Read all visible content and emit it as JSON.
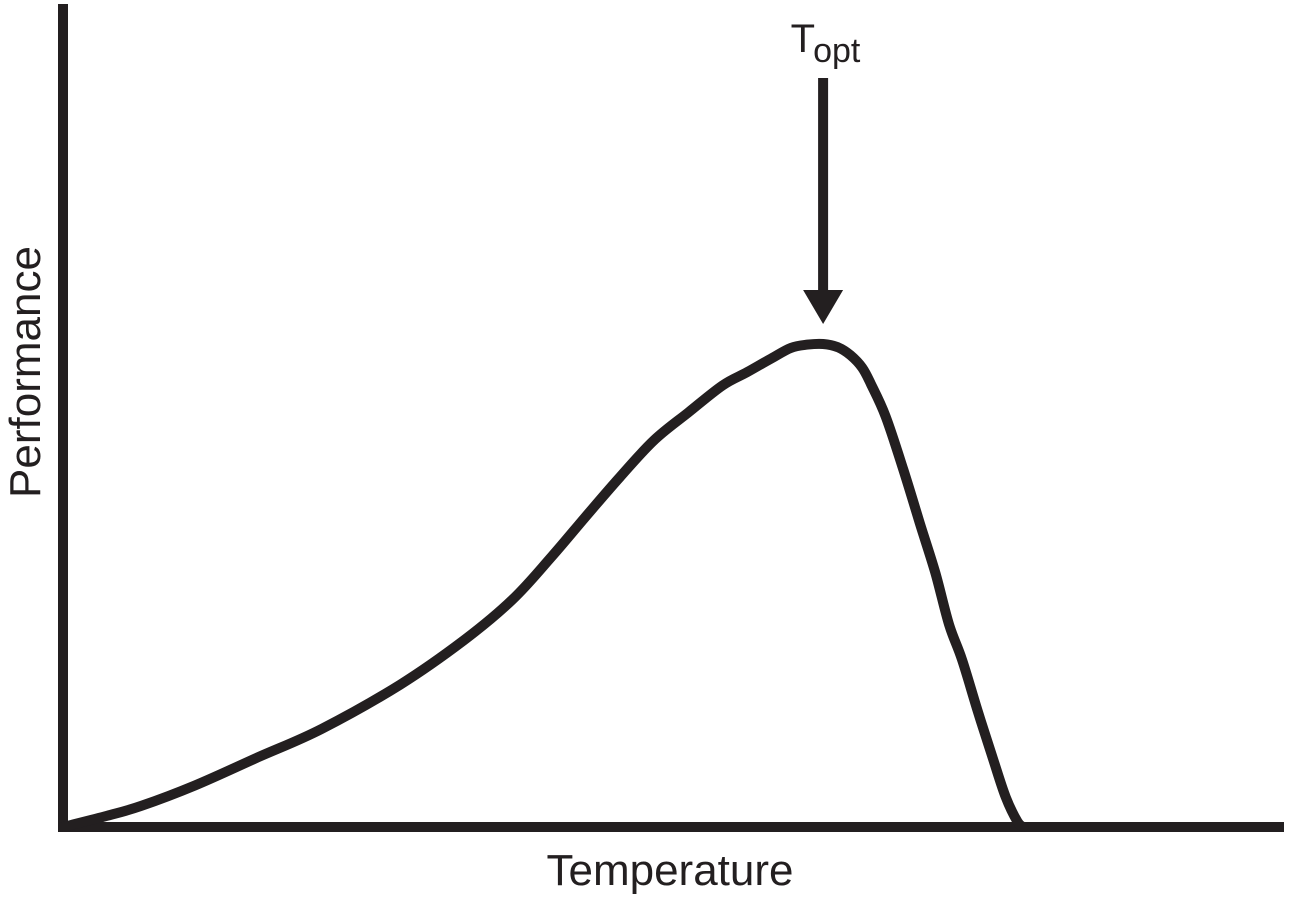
{
  "chart_data": {
    "type": "line",
    "title": "",
    "xlabel": "Temperature",
    "ylabel": "Performance",
    "grid": false,
    "legend": "none",
    "xlim": [
      0,
      1
    ],
    "ylim": [
      0,
      1
    ],
    "series": [
      {
        "color": "#231f20",
        "points": [
          [
            0.0,
            0.0
          ],
          [
            0.045,
            0.017
          ],
          [
            0.08,
            0.032
          ],
          [
            0.135,
            0.063
          ],
          [
            0.2,
            0.106
          ],
          [
            0.265,
            0.149
          ],
          [
            0.345,
            0.216
          ],
          [
            0.41,
            0.283
          ],
          [
            0.46,
            0.345
          ],
          [
            0.5,
            0.41
          ],
          [
            0.535,
            0.471
          ],
          [
            0.57,
            0.531
          ],
          [
            0.605,
            0.587
          ],
          [
            0.64,
            0.629
          ],
          [
            0.675,
            0.67
          ],
          [
            0.7,
            0.69
          ],
          [
            0.725,
            0.711
          ],
          [
            0.745,
            0.727
          ],
          [
            0.762,
            0.732
          ],
          [
            0.778,
            0.733
          ],
          [
            0.793,
            0.728
          ],
          [
            0.806,
            0.716
          ],
          [
            0.818,
            0.697
          ],
          [
            0.827,
            0.672
          ],
          [
            0.842,
            0.623
          ],
          [
            0.86,
            0.543
          ],
          [
            0.877,
            0.461
          ],
          [
            0.893,
            0.385
          ],
          [
            0.907,
            0.307
          ],
          [
            0.92,
            0.255
          ],
          [
            0.936,
            0.177
          ],
          [
            0.952,
            0.103
          ],
          [
            0.965,
            0.045
          ],
          [
            0.977,
            0.008
          ],
          [
            0.983,
            0.0
          ]
        ]
      }
    ],
    "annotations": [
      {
        "text": "T",
        "subscript": "opt",
        "x": 0.778,
        "arrow": "down",
        "target_y": 0.733
      }
    ]
  }
}
